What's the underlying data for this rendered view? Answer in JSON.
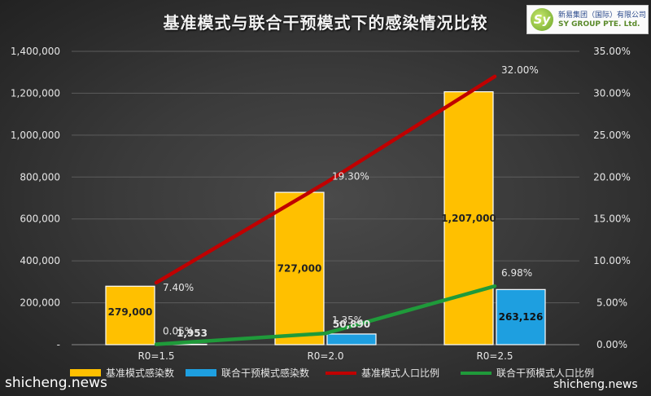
{
  "chart_data": {
    "type": "bar",
    "title": "基准模式与联合干预模式下的感染情况比较",
    "categories": [
      "R0=1.5",
      "R0=2.0",
      "R0=2.5"
    ],
    "ylim": [
      0,
      1400000
    ],
    "y2lim": [
      0,
      0.35
    ],
    "y_ticks": [
      "-",
      "200,000",
      "400,000",
      "600,000",
      "800,000",
      "1,000,000",
      "1,200,000",
      "1,400,000"
    ],
    "y2_ticks": [
      "0.00%",
      "5.00%",
      "10.00%",
      "15.00%",
      "20.00%",
      "25.00%",
      "30.00%",
      "35.00%"
    ],
    "series": [
      {
        "name": "基准模式感染数",
        "kind": "bar",
        "axis": "left",
        "color": "#FFC000",
        "values": [
          279000,
          727000,
          1207000
        ],
        "labels": [
          "279,000",
          "727,000",
          "1,207,000"
        ]
      },
      {
        "name": "联合干预模式感染数",
        "kind": "bar",
        "axis": "left",
        "color": "#1E9FE0",
        "values": [
          1953,
          50890,
          263126
        ],
        "labels": [
          "1,953",
          "50,890",
          "263,126"
        ]
      },
      {
        "name": "基准模式人口比例",
        "kind": "line",
        "axis": "right",
        "color": "#C00000",
        "values": [
          0.074,
          0.193,
          0.32
        ],
        "labels": [
          "7.40%",
          "19.30%",
          "32.00%"
        ]
      },
      {
        "name": "联合干预模式人口比例",
        "kind": "line",
        "axis": "right",
        "color": "#1F9A3A",
        "values": [
          0.0005,
          0.0135,
          0.0698
        ],
        "labels": [
          "0.05%",
          "1.35%",
          "6.98%"
        ]
      }
    ],
    "grid": true,
    "legend_position": "bottom"
  },
  "logo": {
    "mark": "Sy",
    "cn": "新易集团（国际）有限公司",
    "en": "SY GROUP PTE. Ltd."
  },
  "watermark": {
    "left": "shicheng.news",
    "right": "shicheng.news"
  }
}
